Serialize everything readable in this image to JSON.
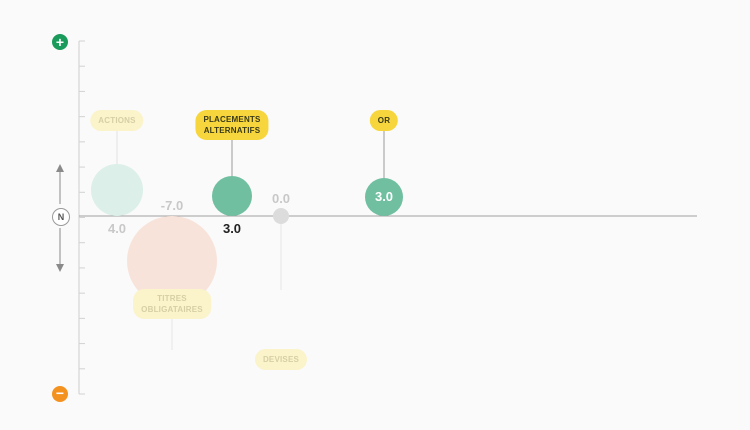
{
  "axis": {
    "plus_symbol": "+",
    "minus_symbol": "−",
    "neutral_label": "N",
    "plus_color": "#1a9b5b",
    "minus_color": "#f4921f",
    "ylim": [
      -10,
      10
    ]
  },
  "chart_data": {
    "type": "scatter",
    "ylim": [
      -10,
      10
    ],
    "points": [
      {
        "label": "ACTIONS",
        "value": 4.0,
        "value_text": "4.0",
        "color": "#dcefe9",
        "state": "dim",
        "label_lines": [
          "ACTIONS"
        ]
      },
      {
        "label": "TITRES OBLIGATAIRES",
        "value": -7.0,
        "value_text": "-7.0",
        "color": "#f8e3da",
        "state": "dim",
        "label_lines": [
          "TITRES",
          "OBLIGATAIRES"
        ]
      },
      {
        "label": "PLACEMENTS ALTERNATIFS",
        "value": 3.0,
        "value_text": "3.0",
        "color": "#6fbfa0",
        "state": "active",
        "label_lines": [
          "PLACEMENTS",
          "ALTERNATIFS"
        ]
      },
      {
        "label": "DEVISES",
        "value": 0.0,
        "value_text": "0.0",
        "color": "#dcdcdc",
        "state": "dim",
        "label_lines": [
          "DEVISES"
        ]
      },
      {
        "label": "OR",
        "value": 3.0,
        "value_text": "3.0",
        "color": "#6fbfa0",
        "state": "active",
        "label_lines": [
          "OR"
        ]
      }
    ]
  }
}
